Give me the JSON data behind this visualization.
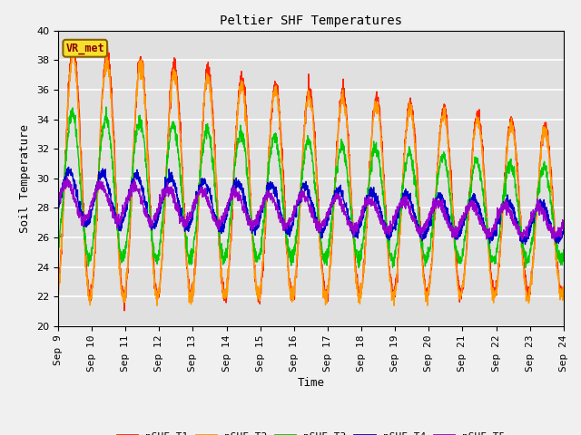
{
  "title": "Peltier SHF Temperatures",
  "xlabel": "Time",
  "ylabel": "Soil Temperature",
  "ylim": [
    20,
    40
  ],
  "xlim": [
    0,
    15
  ],
  "annotation": "VR_met",
  "plot_bg_color": "#e0e0e0",
  "fig_bg_color": "#f0f0f0",
  "series_colors": {
    "pSHF_T1": "#ff2200",
    "pSHF_T2": "#ff9900",
    "pSHF_T3": "#00cc00",
    "pSHF_T4": "#0000cc",
    "pSHF_T5": "#9900cc"
  },
  "xtick_labels": [
    "Sep 9",
    "Sep 10",
    "Sep 11",
    "Sep 12",
    "Sep 13",
    "Sep 14",
    "Sep 15",
    "Sep 16",
    "Sep 17",
    "Sep 18",
    "Sep 19",
    "Sep 20",
    "Sep 21",
    "Sep 22",
    "Sep 23",
    "Sep 24"
  ],
  "xtick_positions": [
    0,
    1,
    2,
    3,
    4,
    5,
    6,
    7,
    8,
    9,
    10,
    11,
    12,
    13,
    14,
    15
  ],
  "ytick_labels": [
    20,
    22,
    24,
    26,
    28,
    30,
    32,
    34,
    36,
    38,
    40
  ],
  "linewidth": 1.0,
  "title_fontsize": 10,
  "label_fontsize": 9,
  "tick_fontsize": 8,
  "legend_fontsize": 8
}
